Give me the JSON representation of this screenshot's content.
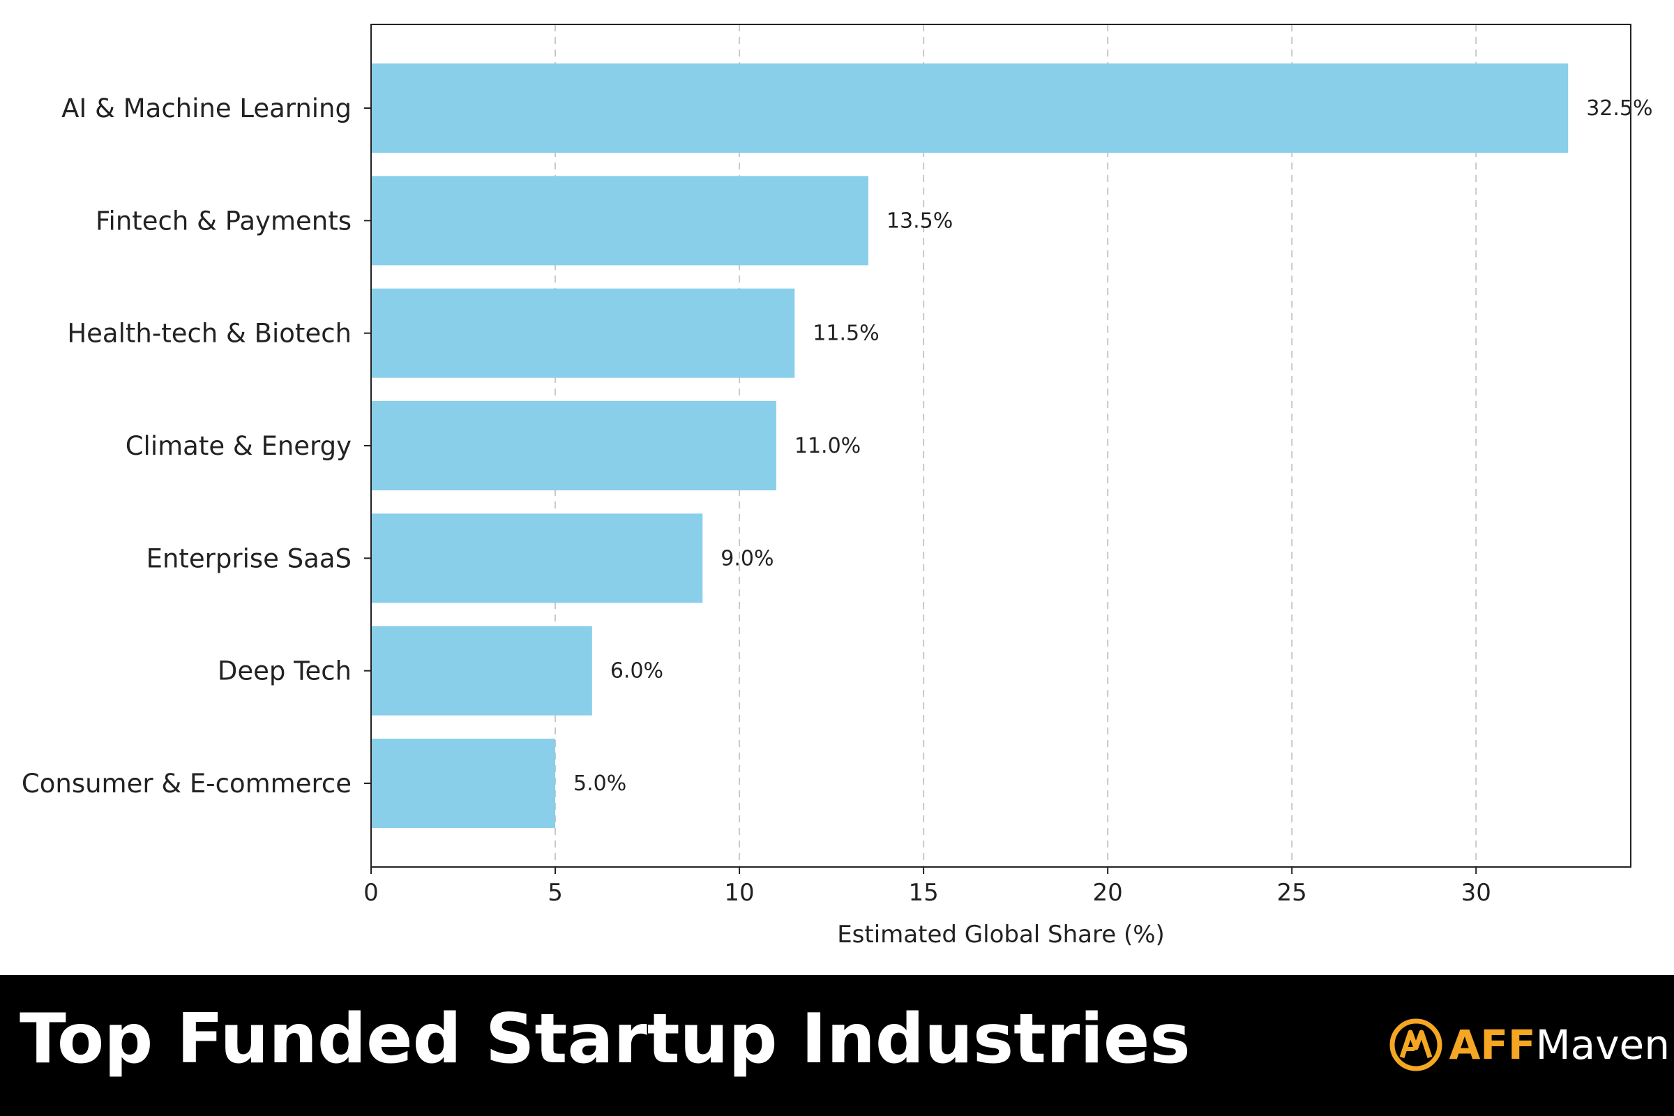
{
  "chart_data": {
    "type": "bar",
    "orientation": "horizontal",
    "categories": [
      "AI & Machine Learning",
      "Fintech & Payments",
      "Health-tech & Biotech",
      "Climate & Energy",
      "Enterprise SaaS",
      "Deep Tech",
      "Consumer & E-commerce"
    ],
    "values": [
      32.5,
      13.5,
      11.5,
      11.0,
      9.0,
      6.0,
      5.0
    ],
    "data_labels": [
      "32.5%",
      "13.5%",
      "11.5%",
      "11.0%",
      "9.0%",
      "6.0%",
      "5.0%"
    ],
    "xlabel": "Estimated Global Share (%)",
    "ylabel": "",
    "xlim": [
      0,
      34.2
    ],
    "xticks": [
      0,
      5,
      10,
      15,
      20,
      25,
      30
    ],
    "grid": "vertical dashed",
    "bar_color": "#89CFEA"
  },
  "footer": {
    "title": "Top Funded Startup Industries",
    "brand_aff": "AFF",
    "brand_maven": "Maven",
    "brand_accent": "#F5A623"
  }
}
